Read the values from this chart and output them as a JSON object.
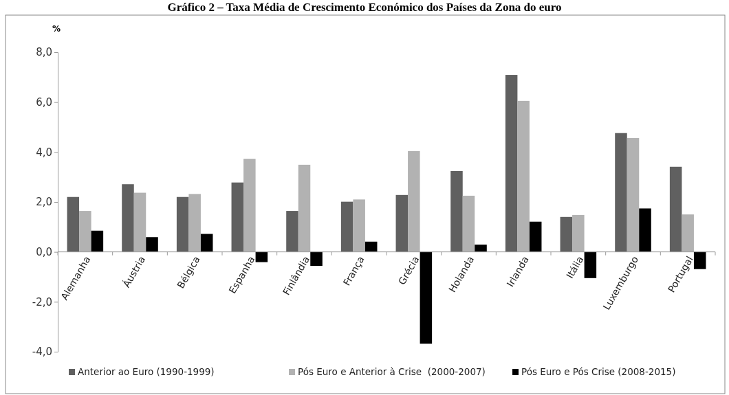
{
  "chart_data": {
    "type": "bar",
    "title": "Gráfico 2 – Taxa Média de Crescimento Económico dos Países da Zona do euro",
    "ylabel": "%",
    "categories": [
      "Alemanha",
      "Áustria",
      "Bélgica",
      "Espanha",
      "Finlândia",
      "França",
      "Grécia",
      "Holanda",
      "Irlanda",
      "Itália",
      "Luxemburgo",
      "Portugal"
    ],
    "series": [
      {
        "name": "Anterior ao Euro (1990-1999)",
        "color": "#606060",
        "values": [
          2.2,
          2.71,
          2.2,
          2.78,
          1.64,
          2.01,
          2.28,
          3.24,
          7.09,
          1.4,
          4.76,
          3.41
        ]
      },
      {
        "name": "Pós Euro e Anterior à Crise  (2000-2007)",
        "color": "#b2b2b2",
        "values": [
          1.64,
          2.37,
          2.32,
          3.73,
          3.49,
          2.1,
          4.04,
          2.25,
          6.05,
          1.48,
          4.56,
          1.5
        ]
      },
      {
        "name": "Pós Euro e Pós Crise (2008-2015)",
        "color": "#000000",
        "values": [
          0.85,
          0.59,
          0.72,
          -0.41,
          -0.56,
          0.41,
          -3.68,
          0.29,
          1.21,
          -1.05,
          1.74,
          -0.69
        ]
      }
    ],
    "ylim": [
      -4,
      8
    ],
    "yticks": [
      {
        "value": -4,
        "label": "-4,0"
      },
      {
        "value": -2,
        "label": "-2,0"
      },
      {
        "value": 0,
        "label": "0,0"
      },
      {
        "value": 2,
        "label": "2,0"
      },
      {
        "value": 4,
        "label": "4,0"
      },
      {
        "value": 6,
        "label": "6,0"
      },
      {
        "value": 8,
        "label": "8,0"
      }
    ],
    "legend": "bottom",
    "grid": false
  }
}
